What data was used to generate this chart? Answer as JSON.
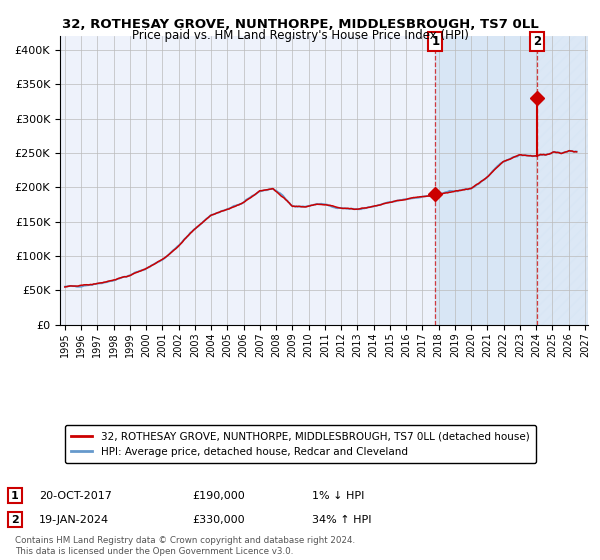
{
  "title": "32, ROTHESAY GROVE, NUNTHORPE, MIDDLESBROUGH, TS7 0LL",
  "subtitle": "Price paid vs. HM Land Registry's House Price Index (HPI)",
  "legend_line1": "32, ROTHESAY GROVE, NUNTHORPE, MIDDLESBROUGH, TS7 0LL (detached house)",
  "legend_line2": "HPI: Average price, detached house, Redcar and Cleveland",
  "annotation1_date": "20-OCT-2017",
  "annotation1_price": "£190,000",
  "annotation1_hpi": "1% ↓ HPI",
  "annotation2_date": "19-JAN-2024",
  "annotation2_price": "£330,000",
  "annotation2_hpi": "34% ↑ HPI",
  "footer": "Contains HM Land Registry data © Crown copyright and database right 2024.\nThis data is licensed under the Open Government Licence v3.0.",
  "hpi_color": "#6699cc",
  "price_color": "#cc0000",
  "marker_color": "#cc0000",
  "bg_color": "#eef2fb",
  "shade_color": "#d8e6f5",
  "grid_color": "#bbbbbb",
  "ylim": [
    0,
    420000
  ],
  "yticks": [
    0,
    50000,
    100000,
    150000,
    200000,
    250000,
    300000,
    350000,
    400000
  ],
  "start_year": 1995,
  "end_year": 2027,
  "sale1_year": 2017.8,
  "sale1_price": 190000,
  "sale2_year": 2024.05,
  "sale2_price": 330000,
  "hpi_waypoints_t": [
    1995.0,
    1996.0,
    1997.0,
    1998.0,
    1999.0,
    2000.0,
    2001.0,
    2002.0,
    2003.0,
    2004.0,
    2005.0,
    2006.0,
    2007.0,
    2007.8,
    2008.5,
    2009.0,
    2009.8,
    2010.5,
    2011.0,
    2012.0,
    2013.0,
    2014.0,
    2015.0,
    2016.0,
    2017.0,
    2017.8,
    2018.0,
    2019.0,
    2020.0,
    2021.0,
    2022.0,
    2023.0,
    2024.0,
    2024.5,
    2025.0,
    2025.5,
    2026.0,
    2026.5
  ],
  "hpi_waypoints_p": [
    55000,
    57000,
    60000,
    65000,
    72000,
    82000,
    95000,
    115000,
    140000,
    160000,
    168000,
    178000,
    195000,
    198000,
    185000,
    173000,
    172000,
    176000,
    175000,
    170000,
    168000,
    172000,
    178000,
    183000,
    187000,
    188000,
    190000,
    195000,
    198000,
    215000,
    238000,
    248000,
    246000,
    248000,
    250000,
    251000,
    252000,
    253000
  ]
}
